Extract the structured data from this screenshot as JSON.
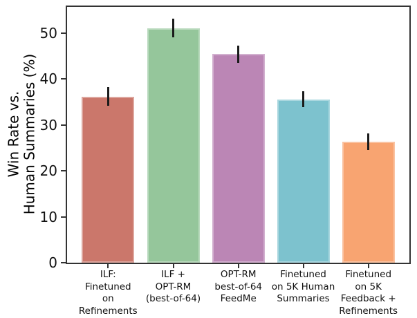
{
  "chart_data": {
    "type": "bar",
    "title": "",
    "ylabel_lines": [
      "Win Rate vs.",
      "Human Summaries (%)"
    ],
    "xlabel": "",
    "categories": [
      "ILF: Finetuned on Refinements",
      "ILF + OPT-RM (best-of-64)",
      "OPT-RM best-of-64 FeedMe",
      "Finetuned on 5K Human Summaries",
      "Finetuned on 5K Feedback + Refinements"
    ],
    "category_label_lines": [
      [
        "ILF:",
        "Finetuned",
        "on",
        "Refinements"
      ],
      [
        "ILF +",
        "OPT-RM",
        "(best-of-64)"
      ],
      [
        "OPT-RM",
        "best-of-64",
        "FeedMe"
      ],
      [
        "Finetuned",
        "on 5K Human",
        "Summaries"
      ],
      [
        "Finetuned",
        "on 5K",
        "Feedback +",
        "Refinements"
      ]
    ],
    "values": [
      36.2,
      51.1,
      45.4,
      35.6,
      26.3
    ],
    "error_bars": [
      2.0,
      2.0,
      1.9,
      1.8,
      1.8
    ],
    "bar_colors": [
      "#cb776b",
      "#95c69b",
      "#bb86b5",
      "#7dc2ce",
      "#f8a471"
    ],
    "error_bar_color": "#1a1a1a",
    "axis_color": "#333333",
    "yticks": [
      0,
      10,
      20,
      30,
      40,
      50
    ],
    "ylim": [
      0,
      56
    ],
    "grid": false,
    "legend": "none"
  }
}
